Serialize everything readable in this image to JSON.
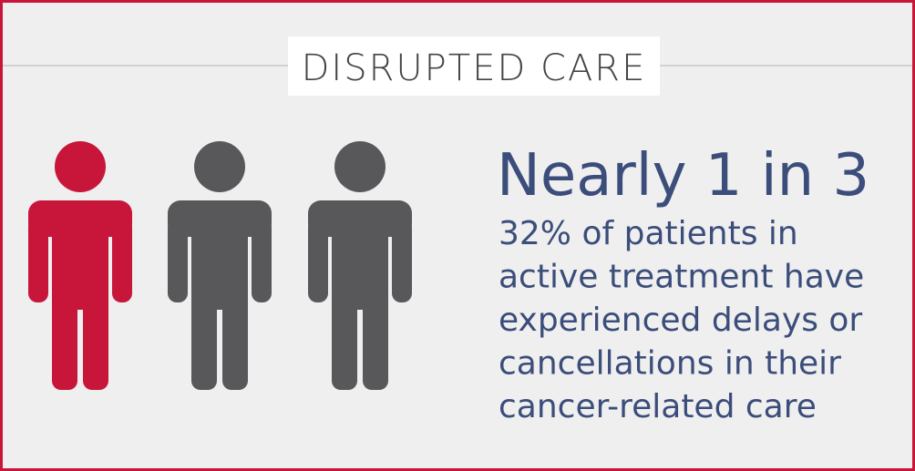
{
  "header": {
    "title": "DISRUPTED CARE"
  },
  "stat": {
    "headline": "Nearly 1 in 3",
    "body_lines": [
      "32% of patients in",
      "active treatment have",
      "experienced delays or",
      "cancellations in their",
      "cancer-related care"
    ]
  }
}
